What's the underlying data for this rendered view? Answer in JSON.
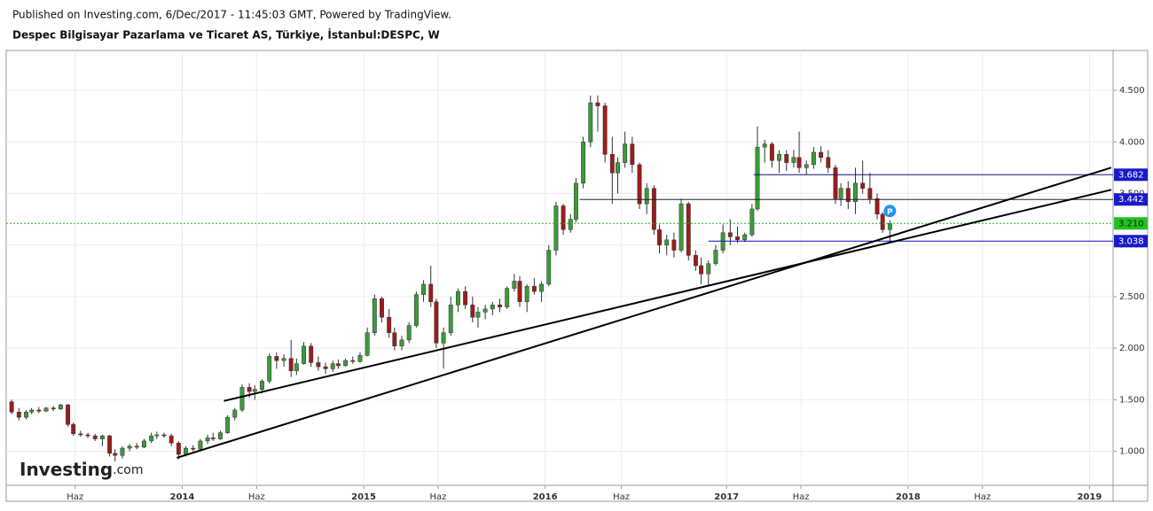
{
  "header": {
    "published": "Published on Investing.com, 6/Dec/2017 - 11:45:03 GMT, Powered by TradingView.",
    "symbol": "Despec Bilgisayar Pazarlama ve Ticaret AS, Türkiye, İstanbul:DESPC, W"
  },
  "logo": {
    "name": "Investing",
    "suffix": ".com"
  },
  "chart_data": {
    "type": "candlestick",
    "up_color": "#3a9a3a",
    "down_color": "#9b1c1c",
    "grid": true,
    "xlim": [
      2013.03,
      2019.13
    ],
    "ylim": [
      0.67,
      4.887
    ],
    "xticks": [
      {
        "value": 2013.41,
        "label": "Haz"
      },
      2014,
      {
        "value": 2014.41,
        "label": "Haz"
      },
      2015,
      {
        "value": 2015.41,
        "label": "Haz"
      },
      2016,
      {
        "value": 2016.42,
        "label": "Haz"
      },
      2017,
      {
        "value": 2017.41,
        "label": "Haz"
      },
      2018,
      {
        "value": 2018.41,
        "label": "Haz"
      },
      2019
    ],
    "yticks": [
      {
        "value": 1,
        "label": "1.000"
      },
      {
        "value": 1.5,
        "label": "1.500"
      },
      {
        "value": 2,
        "label": "2.000"
      },
      {
        "value": 2.5,
        "label": "2.500"
      },
      {
        "value": 3,
        "label": "3.000"
      },
      {
        "value": 3.5,
        "label": "3.500"
      },
      {
        "value": 4,
        "label": "4.000"
      },
      {
        "value": 4.5,
        "label": "4.500"
      }
    ],
    "x": [
      2013.06,
      2013.1,
      2013.14,
      2013.17,
      2013.21,
      2013.25,
      2013.29,
      2013.33,
      2013.37,
      2013.4,
      2013.44,
      2013.48,
      2013.52,
      2013.56,
      2013.6,
      2013.63,
      2013.67,
      2013.71,
      2013.75,
      2013.79,
      2013.83,
      2013.86,
      2013.9,
      2013.94,
      2013.98,
      2014.02,
      2014.06,
      2014.1,
      2014.14,
      2014.17,
      2014.21,
      2014.25,
      2014.29,
      2014.33,
      2014.37,
      2014.4,
      2014.44,
      2014.48,
      2014.52,
      2014.56,
      2014.6,
      2014.63,
      2014.67,
      2014.71,
      2014.75,
      2014.79,
      2014.83,
      2014.86,
      2014.9,
      2014.94,
      2014.98,
      2015.02,
      2015.06,
      2015.1,
      2015.14,
      2015.17,
      2015.21,
      2015.25,
      2015.29,
      2015.33,
      2015.37,
      2015.4,
      2015.44,
      2015.48,
      2015.52,
      2015.56,
      2015.6,
      2015.63,
      2015.67,
      2015.71,
      2015.75,
      2015.79,
      2015.83,
      2015.86,
      2015.9,
      2015.94,
      2015.98,
      2016.02,
      2016.06,
      2016.1,
      2016.14,
      2016.17,
      2016.21,
      2016.25,
      2016.29,
      2016.33,
      2016.37,
      2016.4,
      2016.44,
      2016.48,
      2016.52,
      2016.56,
      2016.6,
      2016.63,
      2016.67,
      2016.71,
      2016.75,
      2016.79,
      2016.83,
      2016.86,
      2016.9,
      2016.94,
      2016.98,
      2017.02,
      2017.06,
      2017.1,
      2017.14,
      2017.17,
      2017.21,
      2017.25,
      2017.29,
      2017.33,
      2017.37,
      2017.4,
      2017.44,
      2017.48,
      2017.52,
      2017.56,
      2017.6,
      2017.63,
      2017.67,
      2017.71,
      2017.75,
      2017.79,
      2017.83,
      2017.86,
      2017.9
    ],
    "candles": [
      [
        1.48,
        1.5,
        1.36,
        1.38
      ],
      [
        1.38,
        1.42,
        1.3,
        1.33
      ],
      [
        1.33,
        1.4,
        1.31,
        1.38
      ],
      [
        1.38,
        1.42,
        1.36,
        1.4
      ],
      [
        1.4,
        1.43,
        1.37,
        1.39
      ],
      [
        1.39,
        1.43,
        1.38,
        1.42
      ],
      [
        1.42,
        1.44,
        1.39,
        1.41
      ],
      [
        1.41,
        1.46,
        1.4,
        1.45
      ],
      [
        1.45,
        1.46,
        1.24,
        1.26
      ],
      [
        1.26,
        1.28,
        1.15,
        1.17
      ],
      [
        1.17,
        1.2,
        1.14,
        1.16
      ],
      [
        1.16,
        1.18,
        1.13,
        1.15
      ],
      [
        1.15,
        1.17,
        1.1,
        1.12
      ],
      [
        1.12,
        1.16,
        1.05,
        1.15
      ],
      [
        1.15,
        1.16,
        0.95,
        0.98
      ],
      [
        0.98,
        1.02,
        0.9,
        0.96
      ],
      [
        0.96,
        1.05,
        0.93,
        1.03
      ],
      [
        1.03,
        1.07,
        1.0,
        1.05
      ],
      [
        1.05,
        1.08,
        1.02,
        1.04
      ],
      [
        1.04,
        1.12,
        1.03,
        1.1
      ],
      [
        1.1,
        1.18,
        1.08,
        1.15
      ],
      [
        1.15,
        1.19,
        1.12,
        1.16
      ],
      [
        1.16,
        1.18,
        1.13,
        1.15
      ],
      [
        1.15,
        1.17,
        1.05,
        1.08
      ],
      [
        1.08,
        1.1,
        0.92,
        0.97
      ],
      [
        0.97,
        1.05,
        0.95,
        1.03
      ],
      [
        1.03,
        1.06,
        1.0,
        1.02
      ],
      [
        1.02,
        1.12,
        1.01,
        1.1
      ],
      [
        1.1,
        1.16,
        1.07,
        1.13
      ],
      [
        1.13,
        1.18,
        1.1,
        1.12
      ],
      [
        1.12,
        1.2,
        1.11,
        1.18
      ],
      [
        1.18,
        1.35,
        1.17,
        1.33
      ],
      [
        1.33,
        1.42,
        1.3,
        1.4
      ],
      [
        1.4,
        1.65,
        1.38,
        1.62
      ],
      [
        1.62,
        1.66,
        1.52,
        1.58
      ],
      [
        1.58,
        1.64,
        1.5,
        1.6
      ],
      [
        1.6,
        1.7,
        1.56,
        1.68
      ],
      [
        1.68,
        1.95,
        1.66,
        1.92
      ],
      [
        1.92,
        1.96,
        1.8,
        1.88
      ],
      [
        1.88,
        1.94,
        1.82,
        1.9
      ],
      [
        1.9,
        2.08,
        1.72,
        1.78
      ],
      [
        1.78,
        1.9,
        1.74,
        1.85
      ],
      [
        1.85,
        2.06,
        1.84,
        2.02
      ],
      [
        2.02,
        2.05,
        1.82,
        1.86
      ],
      [
        1.86,
        1.92,
        1.78,
        1.82
      ],
      [
        1.82,
        1.86,
        1.75,
        1.8
      ],
      [
        1.8,
        1.88,
        1.77,
        1.85
      ],
      [
        1.85,
        1.89,
        1.8,
        1.83
      ],
      [
        1.83,
        1.9,
        1.82,
        1.88
      ],
      [
        1.88,
        1.92,
        1.85,
        1.87
      ],
      [
        1.87,
        1.96,
        1.86,
        1.93
      ],
      [
        1.93,
        2.2,
        1.92,
        2.15
      ],
      [
        2.15,
        2.52,
        2.12,
        2.48
      ],
      [
        2.48,
        2.5,
        2.25,
        2.3
      ],
      [
        2.3,
        2.38,
        2.1,
        2.15
      ],
      [
        2.15,
        2.2,
        1.98,
        2.02
      ],
      [
        2.02,
        2.12,
        1.98,
        2.08
      ],
      [
        2.08,
        2.25,
        2.05,
        2.22
      ],
      [
        2.22,
        2.55,
        2.2,
        2.52
      ],
      [
        2.52,
        2.66,
        2.45,
        2.62
      ],
      [
        2.62,
        2.8,
        2.4,
        2.45
      ],
      [
        2.45,
        2.48,
        2.0,
        2.05
      ],
      [
        2.05,
        2.2,
        1.8,
        2.15
      ],
      [
        2.15,
        2.5,
        2.12,
        2.42
      ],
      [
        2.42,
        2.58,
        2.35,
        2.55
      ],
      [
        2.55,
        2.6,
        2.38,
        2.42
      ],
      [
        2.42,
        2.5,
        2.25,
        2.3
      ],
      [
        2.3,
        2.4,
        2.2,
        2.35
      ],
      [
        2.35,
        2.42,
        2.28,
        2.38
      ],
      [
        2.38,
        2.45,
        2.32,
        2.42
      ],
      [
        2.42,
        2.48,
        2.35,
        2.4
      ],
      [
        2.4,
        2.6,
        2.38,
        2.58
      ],
      [
        2.58,
        2.72,
        2.55,
        2.65
      ],
      [
        2.65,
        2.7,
        2.4,
        2.45
      ],
      [
        2.45,
        2.62,
        2.35,
        2.6
      ],
      [
        2.6,
        2.68,
        2.52,
        2.55
      ],
      [
        2.55,
        2.65,
        2.45,
        2.62
      ],
      [
        2.62,
        3.0,
        2.6,
        2.95
      ],
      [
        2.95,
        3.42,
        2.9,
        3.38
      ],
      [
        3.38,
        3.4,
        3.1,
        3.15
      ],
      [
        3.15,
        3.3,
        3.12,
        3.25
      ],
      [
        3.25,
        3.65,
        3.22,
        3.6
      ],
      [
        3.6,
        4.05,
        3.55,
        4.0
      ],
      [
        4.0,
        4.45,
        3.95,
        4.38
      ],
      [
        4.38,
        4.45,
        4.1,
        4.35
      ],
      [
        4.35,
        4.38,
        3.8,
        3.88
      ],
      [
        3.88,
        4.05,
        3.4,
        3.7
      ],
      [
        3.7,
        3.85,
        3.5,
        3.8
      ],
      [
        3.8,
        4.1,
        3.75,
        3.98
      ],
      [
        3.98,
        4.05,
        3.7,
        3.78
      ],
      [
        3.78,
        3.8,
        3.35,
        3.4
      ],
      [
        3.4,
        3.6,
        3.3,
        3.55
      ],
      [
        3.55,
        3.58,
        3.1,
        3.15
      ],
      [
        3.15,
        3.2,
        2.92,
        3.0
      ],
      [
        3.0,
        3.1,
        2.9,
        3.05
      ],
      [
        3.05,
        3.12,
        2.88,
        2.95
      ],
      [
        2.95,
        3.45,
        2.93,
        3.4
      ],
      [
        3.4,
        3.42,
        2.85,
        2.9
      ],
      [
        2.9,
        2.95,
        2.75,
        2.8
      ],
      [
        2.8,
        2.88,
        2.62,
        2.72
      ],
      [
        2.72,
        2.85,
        2.6,
        2.82
      ],
      [
        2.82,
        3.0,
        2.8,
        2.95
      ],
      [
        2.95,
        3.2,
        2.92,
        3.12
      ],
      [
        3.12,
        3.25,
        3.0,
        3.08
      ],
      [
        3.08,
        3.18,
        3.02,
        3.05
      ],
      [
        3.05,
        3.12,
        3.03,
        3.1
      ],
      [
        3.1,
        3.4,
        3.08,
        3.35
      ],
      [
        3.35,
        4.15,
        3.33,
        3.95
      ],
      [
        3.95,
        4.02,
        3.8,
        3.98
      ],
      [
        3.98,
        4.0,
        3.75,
        3.82
      ],
      [
        3.82,
        3.92,
        3.7,
        3.88
      ],
      [
        3.88,
        3.92,
        3.72,
        3.8
      ],
      [
        3.8,
        3.92,
        3.75,
        3.85
      ],
      [
        3.85,
        4.1,
        3.7,
        3.75
      ],
      [
        3.75,
        3.82,
        3.68,
        3.78
      ],
      [
        3.78,
        3.95,
        3.74,
        3.9
      ],
      [
        3.9,
        3.96,
        3.8,
        3.85
      ],
      [
        3.85,
        3.92,
        3.7,
        3.75
      ],
      [
        3.75,
        3.78,
        3.4,
        3.45
      ],
      [
        3.45,
        3.6,
        3.38,
        3.55
      ],
      [
        3.55,
        3.62,
        3.35,
        3.42
      ],
      [
        3.42,
        3.75,
        3.3,
        3.6
      ],
      [
        3.6,
        3.82,
        3.5,
        3.55
      ],
      [
        3.55,
        3.7,
        3.4,
        3.45
      ],
      [
        3.45,
        3.5,
        3.25,
        3.3
      ],
      [
        3.3,
        3.32,
        3.12,
        3.15
      ],
      [
        3.15,
        3.24,
        3.02,
        3.21
      ]
    ],
    "levels": [
      {
        "value": 3.682,
        "from": 2017.15,
        "color": "#10107a",
        "box_color": "#1a1ac8",
        "text_color": "#ffffff"
      },
      {
        "value": 3.442,
        "from": 2016.19,
        "color": "#222222",
        "box_color": "#1a1ac8",
        "text_color": "#ffffff"
      },
      {
        "value": 3.21,
        "label": "3.210",
        "from": 2013.03,
        "color": "#22b022",
        "box_color": "#22c022",
        "text_color": "#0a2a0a",
        "dashed": true
      },
      {
        "value": 3.038,
        "from": 2016.9,
        "color": "#1010c0",
        "box_color": "#1a1ac8",
        "text_color": "#ffffff"
      }
    ],
    "trendlines": [
      {
        "x": [
          2014.23,
          2019.12
        ],
        "y": [
          1.488,
          3.536
        ],
        "color": "#000000"
      },
      {
        "x": [
          2013.97,
          2019.12
        ],
        "y": [
          0.937,
          3.751
        ],
        "color": "#000000"
      }
    ],
    "markers": [
      {
        "x": 2017.9,
        "y": 3.33,
        "label": "P",
        "color": "#2196f3"
      }
    ]
  }
}
